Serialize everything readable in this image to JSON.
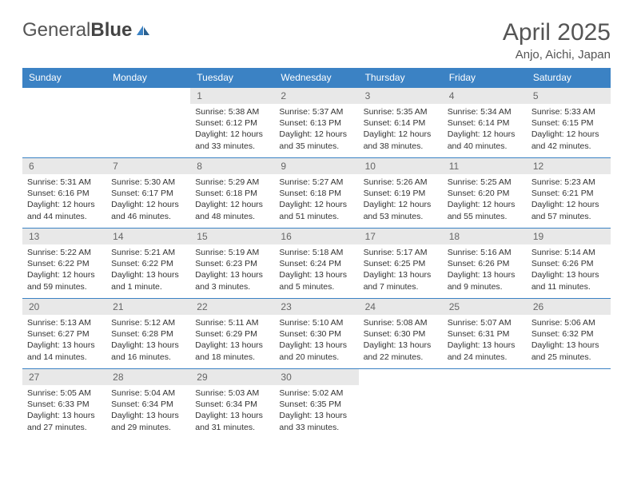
{
  "logo": {
    "text1": "General",
    "text2": "Blue"
  },
  "title": "April 2025",
  "location": "Anjo, Aichi, Japan",
  "colors": {
    "header_bg": "#3b82c4",
    "daynum_bg": "#e8e8e8",
    "border": "#3b82c4"
  },
  "weekdays": [
    "Sunday",
    "Monday",
    "Tuesday",
    "Wednesday",
    "Thursday",
    "Friday",
    "Saturday"
  ],
  "weeks": [
    [
      {
        "empty": true
      },
      {
        "empty": true
      },
      {
        "day": "1",
        "sunrise": "Sunrise: 5:38 AM",
        "sunset": "Sunset: 6:12 PM",
        "daylight": "Daylight: 12 hours and 33 minutes."
      },
      {
        "day": "2",
        "sunrise": "Sunrise: 5:37 AM",
        "sunset": "Sunset: 6:13 PM",
        "daylight": "Daylight: 12 hours and 35 minutes."
      },
      {
        "day": "3",
        "sunrise": "Sunrise: 5:35 AM",
        "sunset": "Sunset: 6:14 PM",
        "daylight": "Daylight: 12 hours and 38 minutes."
      },
      {
        "day": "4",
        "sunrise": "Sunrise: 5:34 AM",
        "sunset": "Sunset: 6:14 PM",
        "daylight": "Daylight: 12 hours and 40 minutes."
      },
      {
        "day": "5",
        "sunrise": "Sunrise: 5:33 AM",
        "sunset": "Sunset: 6:15 PM",
        "daylight": "Daylight: 12 hours and 42 minutes."
      }
    ],
    [
      {
        "day": "6",
        "sunrise": "Sunrise: 5:31 AM",
        "sunset": "Sunset: 6:16 PM",
        "daylight": "Daylight: 12 hours and 44 minutes."
      },
      {
        "day": "7",
        "sunrise": "Sunrise: 5:30 AM",
        "sunset": "Sunset: 6:17 PM",
        "daylight": "Daylight: 12 hours and 46 minutes."
      },
      {
        "day": "8",
        "sunrise": "Sunrise: 5:29 AM",
        "sunset": "Sunset: 6:18 PM",
        "daylight": "Daylight: 12 hours and 48 minutes."
      },
      {
        "day": "9",
        "sunrise": "Sunrise: 5:27 AM",
        "sunset": "Sunset: 6:18 PM",
        "daylight": "Daylight: 12 hours and 51 minutes."
      },
      {
        "day": "10",
        "sunrise": "Sunrise: 5:26 AM",
        "sunset": "Sunset: 6:19 PM",
        "daylight": "Daylight: 12 hours and 53 minutes."
      },
      {
        "day": "11",
        "sunrise": "Sunrise: 5:25 AM",
        "sunset": "Sunset: 6:20 PM",
        "daylight": "Daylight: 12 hours and 55 minutes."
      },
      {
        "day": "12",
        "sunrise": "Sunrise: 5:23 AM",
        "sunset": "Sunset: 6:21 PM",
        "daylight": "Daylight: 12 hours and 57 minutes."
      }
    ],
    [
      {
        "day": "13",
        "sunrise": "Sunrise: 5:22 AM",
        "sunset": "Sunset: 6:22 PM",
        "daylight": "Daylight: 12 hours and 59 minutes."
      },
      {
        "day": "14",
        "sunrise": "Sunrise: 5:21 AM",
        "sunset": "Sunset: 6:22 PM",
        "daylight": "Daylight: 13 hours and 1 minute."
      },
      {
        "day": "15",
        "sunrise": "Sunrise: 5:19 AM",
        "sunset": "Sunset: 6:23 PM",
        "daylight": "Daylight: 13 hours and 3 minutes."
      },
      {
        "day": "16",
        "sunrise": "Sunrise: 5:18 AM",
        "sunset": "Sunset: 6:24 PM",
        "daylight": "Daylight: 13 hours and 5 minutes."
      },
      {
        "day": "17",
        "sunrise": "Sunrise: 5:17 AM",
        "sunset": "Sunset: 6:25 PM",
        "daylight": "Daylight: 13 hours and 7 minutes."
      },
      {
        "day": "18",
        "sunrise": "Sunrise: 5:16 AM",
        "sunset": "Sunset: 6:26 PM",
        "daylight": "Daylight: 13 hours and 9 minutes."
      },
      {
        "day": "19",
        "sunrise": "Sunrise: 5:14 AM",
        "sunset": "Sunset: 6:26 PM",
        "daylight": "Daylight: 13 hours and 11 minutes."
      }
    ],
    [
      {
        "day": "20",
        "sunrise": "Sunrise: 5:13 AM",
        "sunset": "Sunset: 6:27 PM",
        "daylight": "Daylight: 13 hours and 14 minutes."
      },
      {
        "day": "21",
        "sunrise": "Sunrise: 5:12 AM",
        "sunset": "Sunset: 6:28 PM",
        "daylight": "Daylight: 13 hours and 16 minutes."
      },
      {
        "day": "22",
        "sunrise": "Sunrise: 5:11 AM",
        "sunset": "Sunset: 6:29 PM",
        "daylight": "Daylight: 13 hours and 18 minutes."
      },
      {
        "day": "23",
        "sunrise": "Sunrise: 5:10 AM",
        "sunset": "Sunset: 6:30 PM",
        "daylight": "Daylight: 13 hours and 20 minutes."
      },
      {
        "day": "24",
        "sunrise": "Sunrise: 5:08 AM",
        "sunset": "Sunset: 6:30 PM",
        "daylight": "Daylight: 13 hours and 22 minutes."
      },
      {
        "day": "25",
        "sunrise": "Sunrise: 5:07 AM",
        "sunset": "Sunset: 6:31 PM",
        "daylight": "Daylight: 13 hours and 24 minutes."
      },
      {
        "day": "26",
        "sunrise": "Sunrise: 5:06 AM",
        "sunset": "Sunset: 6:32 PM",
        "daylight": "Daylight: 13 hours and 25 minutes."
      }
    ],
    [
      {
        "day": "27",
        "sunrise": "Sunrise: 5:05 AM",
        "sunset": "Sunset: 6:33 PM",
        "daylight": "Daylight: 13 hours and 27 minutes."
      },
      {
        "day": "28",
        "sunrise": "Sunrise: 5:04 AM",
        "sunset": "Sunset: 6:34 PM",
        "daylight": "Daylight: 13 hours and 29 minutes."
      },
      {
        "day": "29",
        "sunrise": "Sunrise: 5:03 AM",
        "sunset": "Sunset: 6:34 PM",
        "daylight": "Daylight: 13 hours and 31 minutes."
      },
      {
        "day": "30",
        "sunrise": "Sunrise: 5:02 AM",
        "sunset": "Sunset: 6:35 PM",
        "daylight": "Daylight: 13 hours and 33 minutes."
      },
      {
        "empty": true
      },
      {
        "empty": true
      },
      {
        "empty": true
      }
    ]
  ]
}
